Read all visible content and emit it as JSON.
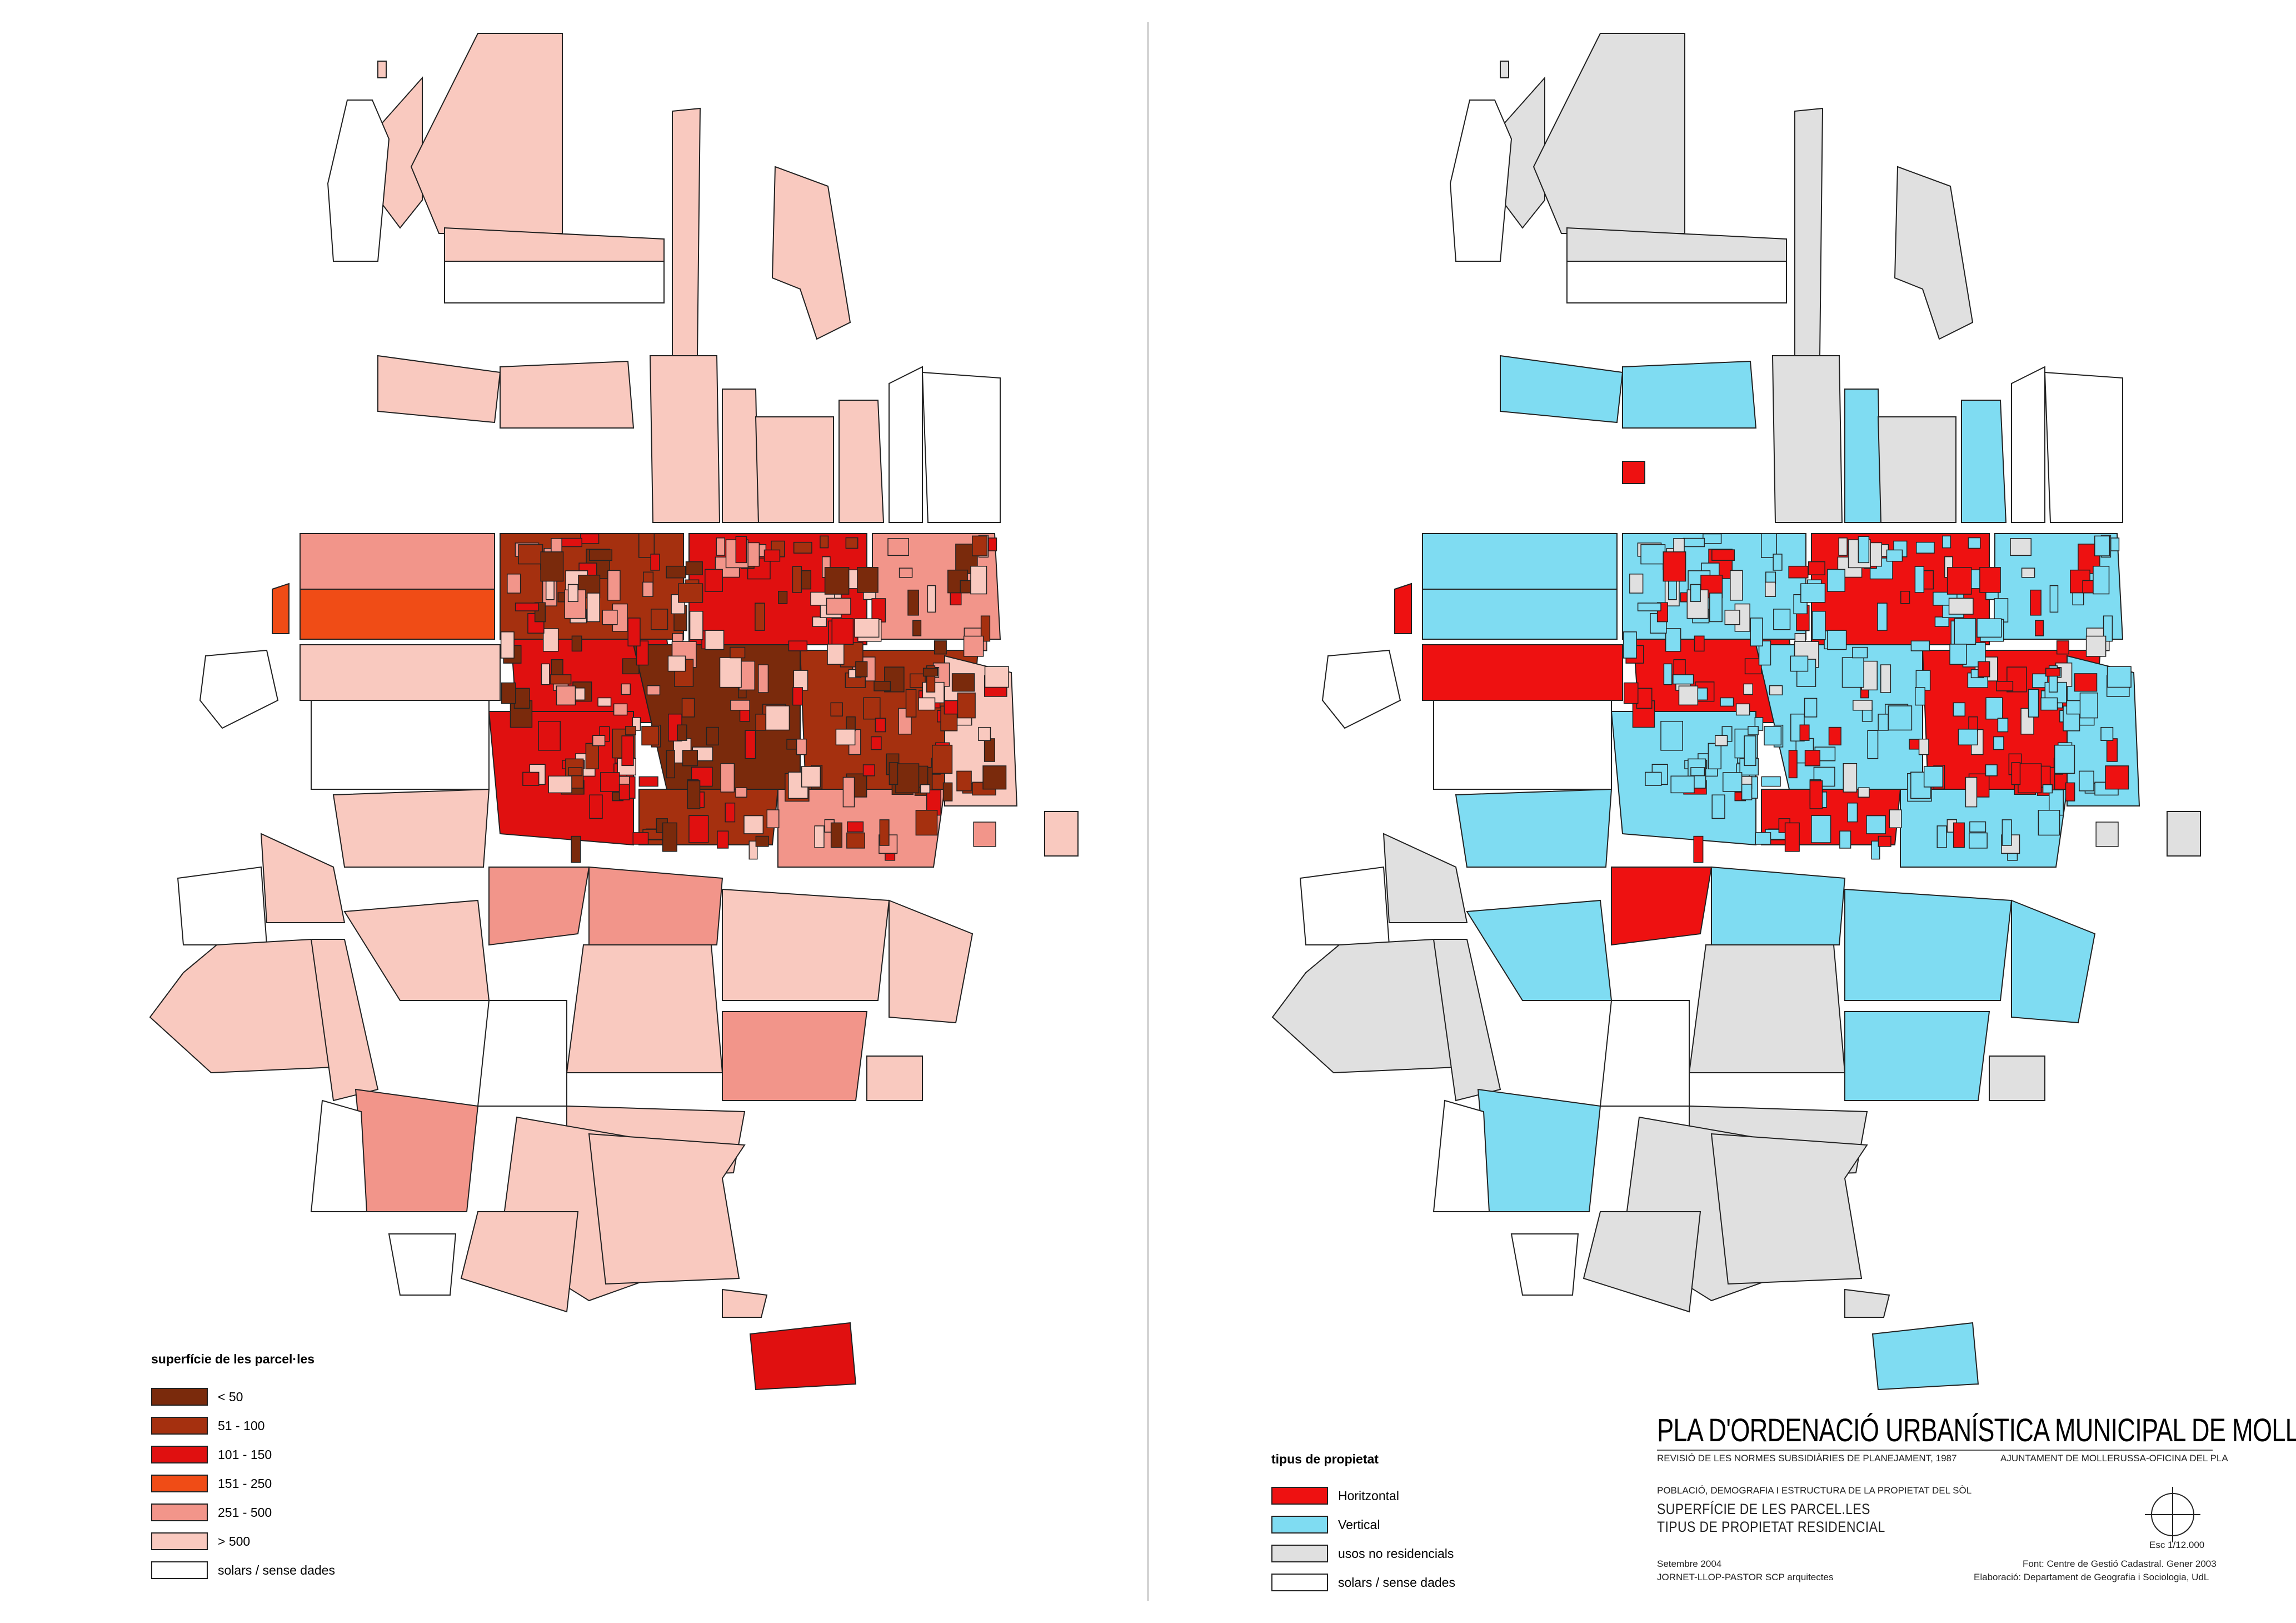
{
  "maps": [
    {
      "id": "surface",
      "legend": {
        "title": "superfície de les parcel·les",
        "items": [
          {
            "label": "< 50",
            "color": "#7a2a0c"
          },
          {
            "label": "51 - 100",
            "color": "#a5300f"
          },
          {
            "label": "101 - 150",
            "color": "#e01010"
          },
          {
            "label": "151 - 250",
            "color": "#f04c16"
          },
          {
            "label": "251 - 500",
            "color": "#f2958a"
          },
          {
            "label": "> 500",
            "color": "#f9c9bf"
          },
          {
            "label": "solars / sense dades",
            "color": "#ffffff"
          }
        ]
      }
    },
    {
      "id": "property",
      "legend": {
        "title": "tipus de propietat",
        "items": [
          {
            "label": "Horitzontal",
            "color": "#ee1111"
          },
          {
            "label": "Vertical",
            "color": "#7fdcf2"
          },
          {
            "label": "usos no residencials",
            "color": "#e0e0e0"
          },
          {
            "label": "solars / sense dades",
            "color": "#ffffff"
          }
        ]
      }
    }
  ],
  "titleblock": {
    "title": "PLA D'ORDENACIÓ URBANÍSTICA MUNICIPAL DE MOLLERUSSA",
    "subtitle_left": "REVISIÓ DE LES NORMES SUBSIDIÀRIES DE PLANEJAMENT, 1987",
    "subtitle_right": "AJUNTAMENT DE MOLLERUSSA-OFICINA DEL PLA",
    "section": "POBLACIÓ, DEMOGRAFIA I ESTRUCTURA DE LA PROPIETAT DEL SÒL",
    "map_title_1": "SUPERFÍCIE DE LES PARCEL.LES",
    "map_title_2": "TIPUS DE PROPIETAT RESIDENCIAL",
    "scale": "Esc 1/12.000",
    "date": "Setembre 2004",
    "authors": "JORNET-LLOP-PASTOR SCP   arquitectes",
    "source": "Font: Centre de Gestió Cadastral. Gener 2003",
    "elaboration": "Elaboració: Departament de Geografia i Sociologia, UdL"
  }
}
